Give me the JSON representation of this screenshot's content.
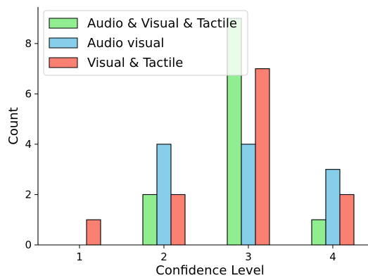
{
  "chart_data": {
    "type": "bar",
    "categories": [
      "1",
      "2",
      "3",
      "4"
    ],
    "series": [
      {
        "name": "Audio & Visual & Tactile",
        "values": [
          0,
          2,
          9,
          1
        ],
        "color": "#90ee90"
      },
      {
        "name": "Audio visual",
        "values": [
          0,
          4,
          4,
          3
        ],
        "color": "#87ceeb"
      },
      {
        "name": "Visual & Tactile",
        "values": [
          1,
          2,
          7,
          2
        ],
        "color": "#fa8072"
      }
    ],
    "xlabel": "Confidence Level",
    "ylabel": "Count",
    "ylim": [
      0,
      9.45
    ],
    "yticks": [
      0,
      2,
      4,
      6,
      8
    ],
    "grid": false,
    "legend_position": "top-left"
  }
}
